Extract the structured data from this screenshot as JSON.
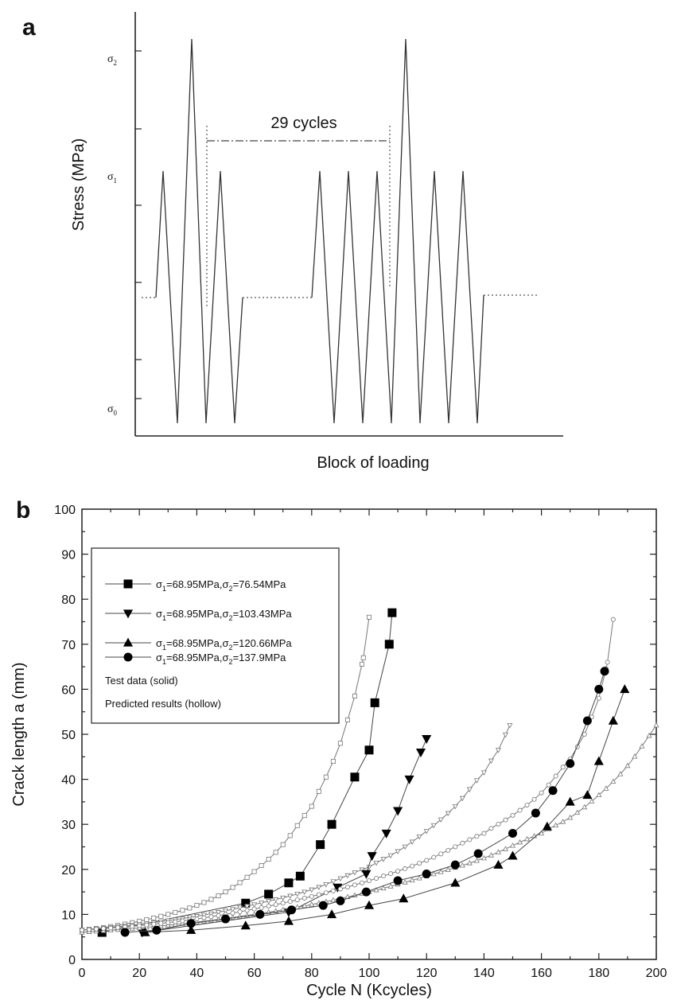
{
  "panel_a": {
    "label": "a",
    "ylabel": "Stress  (MPa)",
    "xlabel": "Block of loading",
    "annotation": "29 cycles",
    "y_labels": [
      {
        "base": "σ",
        "sub": "2"
      },
      {
        "base": "σ",
        "sub": "1"
      },
      {
        "base": "σ",
        "sub": "0"
      }
    ]
  },
  "panel_b": {
    "label": "b",
    "legend_text_1": "Test data (solid)",
    "legend_text_2": "Predicted results (hollow)"
  },
  "chart_data": [
    {
      "type": "line",
      "title": "",
      "xlabel": "Block of loading",
      "ylabel": "Stress  (MPa)",
      "y_levels": [
        "σ0",
        "σ1",
        "σ2"
      ],
      "sequence": [
        "base",
        "σ0",
        "σ1",
        "σ0",
        "σ2",
        "σ0",
        "σ1",
        "σ0",
        "base",
        "...",
        "base",
        "σ0",
        "σ1",
        "σ0",
        "σ1",
        "σ0",
        "σ1",
        "σ0",
        "σ2",
        "σ0",
        "σ1",
        "σ0",
        "σ1",
        "σ0",
        "base"
      ],
      "annotation": "29 cycles"
    },
    {
      "type": "line",
      "title": "",
      "xlabel": "Cycle N (Kcycles)",
      "ylabel": "Crack length a (mm)",
      "xlim": [
        0,
        200
      ],
      "ylim": [
        0,
        100
      ],
      "xticks": [
        0,
        20,
        40,
        60,
        80,
        100,
        120,
        140,
        160,
        180,
        200
      ],
      "yticks": [
        0,
        10,
        20,
        30,
        40,
        50,
        60,
        70,
        80,
        90,
        100
      ],
      "legend_position": "top-left",
      "series": [
        {
          "name_prefix": "σ",
          "name_sub1": "1",
          "name_mid": "=68.95MPa,σ",
          "name_sub2": "2",
          "name_suffix": "=76.54MPa",
          "marker": "square",
          "test_x": [
            7,
            57,
            65,
            72,
            76,
            83,
            87,
            95,
            100,
            102,
            107,
            108
          ],
          "test_y": [
            6,
            12.5,
            14.5,
            17,
            18.5,
            25.5,
            30,
            40.5,
            46.5,
            57,
            70,
            77
          ],
          "pred_x": [
            0,
            10,
            20,
            30,
            40,
            50,
            60,
            70,
            80,
            85,
            90,
            95,
            98,
            100
          ],
          "pred_y": [
            6.5,
            7.3,
            8.5,
            10,
            12,
            15,
            19.5,
            25.5,
            34,
            40.5,
            48,
            58.5,
            67,
            76
          ]
        },
        {
          "name_prefix": "σ",
          "name_sub1": "1",
          "name_mid": "=68.95MPa,σ",
          "name_sub2": "2",
          "name_suffix": "=103.43MPa",
          "marker": "triangle-down",
          "test_x": [
            21,
            72,
            89,
            99,
            101,
            106,
            110,
            114,
            118,
            120
          ],
          "test_y": [
            6,
            10.5,
            16,
            19,
            23,
            28,
            33,
            40,
            46,
            49
          ],
          "pred_x": [
            0,
            20,
            40,
            60,
            80,
            100,
            110,
            120,
            130,
            140,
            145,
            149
          ],
          "pred_y": [
            6.5,
            7.8,
            9.6,
            12.2,
            15.5,
            20.5,
            24,
            28.5,
            34,
            41.5,
            46.5,
            52
          ]
        },
        {
          "name_prefix": "σ",
          "name_sub1": "1",
          "name_mid": "=68.95MPa,σ",
          "name_sub2": "2",
          "name_suffix": "=120.66MPa",
          "marker": "triangle-up",
          "test_x": [
            22,
            38,
            57,
            72,
            87,
            100,
            112,
            130,
            145,
            150,
            162,
            170,
            176,
            180,
            185,
            189
          ],
          "test_y": [
            6,
            6.5,
            7.5,
            8.5,
            10,
            12,
            13.5,
            17,
            21,
            23,
            29.5,
            35,
            36.5,
            44,
            53,
            60
          ],
          "pred_x": [
            0,
            20,
            40,
            60,
            80,
            100,
            120,
            140,
            160,
            170,
            180,
            190,
            200
          ],
          "pred_y": [
            6,
            7,
            8.3,
            10,
            12.2,
            15,
            18.5,
            22.5,
            28,
            31.5,
            36.5,
            43,
            52
          ]
        },
        {
          "name_prefix": "σ",
          "name_sub1": "1",
          "name_mid": "=68.95MPa,σ",
          "name_sub2": "2",
          "name_suffix": "=137.9MPa",
          "marker": "circle",
          "test_x": [
            15,
            26,
            38,
            50,
            62,
            73,
            84,
            90,
            99,
            110,
            120,
            130,
            138,
            150,
            158,
            164,
            170,
            176,
            180,
            182
          ],
          "test_y": [
            6,
            6.5,
            8,
            9,
            10,
            11,
            12,
            13,
            15,
            17.5,
            19,
            21,
            23.5,
            28,
            32.5,
            37.5,
            43.5,
            53,
            60,
            64
          ],
          "pred_x": [
            0,
            20,
            40,
            60,
            80,
            100,
            120,
            140,
            150,
            160,
            170,
            175,
            180,
            183,
            185
          ],
          "pred_y": [
            6.5,
            7.5,
            9,
            11.2,
            14,
            17.5,
            22,
            28,
            32,
            37,
            44.5,
            50,
            58,
            66,
            75.5
          ]
        }
      ]
    }
  ]
}
